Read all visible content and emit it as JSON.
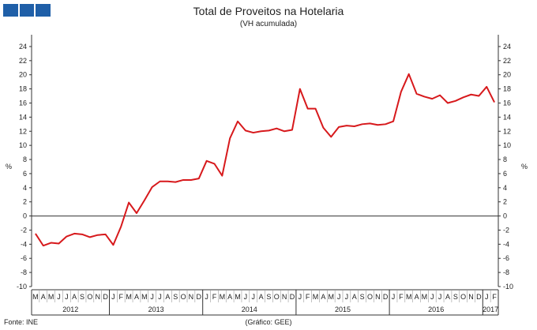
{
  "header": {
    "title": "Total de Proveitos na Hotelaria",
    "subtitle": "(VH acumulada)"
  },
  "logo": {
    "color": "#1f5fa8",
    "blocks": 3
  },
  "footer": {
    "source": "Fonte: INE",
    "credit": "(Gráfico: GEE)"
  },
  "colors": {
    "series": "#d7191c",
    "axis": "#333333"
  },
  "chart_data": {
    "type": "line",
    "title": "Total de Proveitos na Hotelaria",
    "subtitle": "(VH acumulada)",
    "ylabel_left": "%",
    "ylabel_right": "%",
    "ylim": [
      -10,
      25
    ],
    "yticks": [
      -10,
      -8,
      -6,
      -4,
      -2,
      0,
      2,
      4,
      6,
      8,
      10,
      12,
      14,
      16,
      18,
      20,
      22,
      24
    ],
    "grid": false,
    "legend": "none",
    "x": [
      "2012-03",
      "2012-04",
      "2012-05",
      "2012-06",
      "2012-07",
      "2012-08",
      "2012-09",
      "2012-10",
      "2012-11",
      "2012-12",
      "2013-01",
      "2013-02",
      "2013-03",
      "2013-04",
      "2013-05",
      "2013-06",
      "2013-07",
      "2013-08",
      "2013-09",
      "2013-10",
      "2013-11",
      "2013-12",
      "2014-01",
      "2014-02",
      "2014-03",
      "2014-04",
      "2014-05",
      "2014-06",
      "2014-07",
      "2014-08",
      "2014-09",
      "2014-10",
      "2014-11",
      "2014-12",
      "2015-01",
      "2015-02",
      "2015-03",
      "2015-04",
      "2015-05",
      "2015-06",
      "2015-07",
      "2015-08",
      "2015-09",
      "2015-10",
      "2015-11",
      "2015-12",
      "2016-01",
      "2016-02",
      "2016-03",
      "2016-04",
      "2016-05",
      "2016-06",
      "2016-07",
      "2016-08",
      "2016-09",
      "2016-10",
      "2016-11",
      "2016-12",
      "2017-01",
      "2017-02"
    ],
    "month_labels": [
      "M",
      "A",
      "M",
      "J",
      "J",
      "A",
      "S",
      "O",
      "N",
      "D",
      "J",
      "F",
      "M",
      "A",
      "M",
      "J",
      "J",
      "A",
      "S",
      "O",
      "N",
      "D",
      "J",
      "F",
      "M",
      "A",
      "M",
      "J",
      "J",
      "A",
      "S",
      "O",
      "N",
      "D",
      "J",
      "F",
      "M",
      "A",
      "M",
      "J",
      "J",
      "A",
      "S",
      "O",
      "N",
      "D",
      "J",
      "F",
      "M",
      "A",
      "M",
      "J",
      "J",
      "A",
      "S",
      "O",
      "N",
      "D",
      "J",
      "F"
    ],
    "years": [
      {
        "label": "2012",
        "start": 0,
        "end": 9
      },
      {
        "label": "2013",
        "start": 10,
        "end": 21
      },
      {
        "label": "2014",
        "start": 22,
        "end": 33
      },
      {
        "label": "2015",
        "start": 34,
        "end": 45
      },
      {
        "label": "2016",
        "start": 46,
        "end": 57
      },
      {
        "label": "2017",
        "start": 58,
        "end": 59
      }
    ],
    "series": [
      {
        "values": [
          -2.5,
          -4.2,
          -3.8,
          -3.9,
          -2.9,
          -2.5,
          -2.6,
          -3.0,
          -2.7,
          -2.6,
          -4.1,
          -1.5,
          1.9,
          0.4,
          2.2,
          4.1,
          4.9,
          4.9,
          4.8,
          5.1,
          5.1,
          5.3,
          7.8,
          7.4,
          5.7,
          11.0,
          13.4,
          12.1,
          11.8,
          12.0,
          12.1,
          12.4,
          12.0,
          12.2,
          18.0,
          15.2,
          15.2,
          12.5,
          11.2,
          12.6,
          12.8,
          12.7,
          13.0,
          13.1,
          12.9,
          13.0,
          13.4,
          17.6,
          20.1,
          17.3,
          16.9,
          16.6,
          17.1,
          16.0,
          16.3,
          16.8,
          17.2,
          17.0,
          18.3,
          16.1
        ]
      }
    ]
  }
}
